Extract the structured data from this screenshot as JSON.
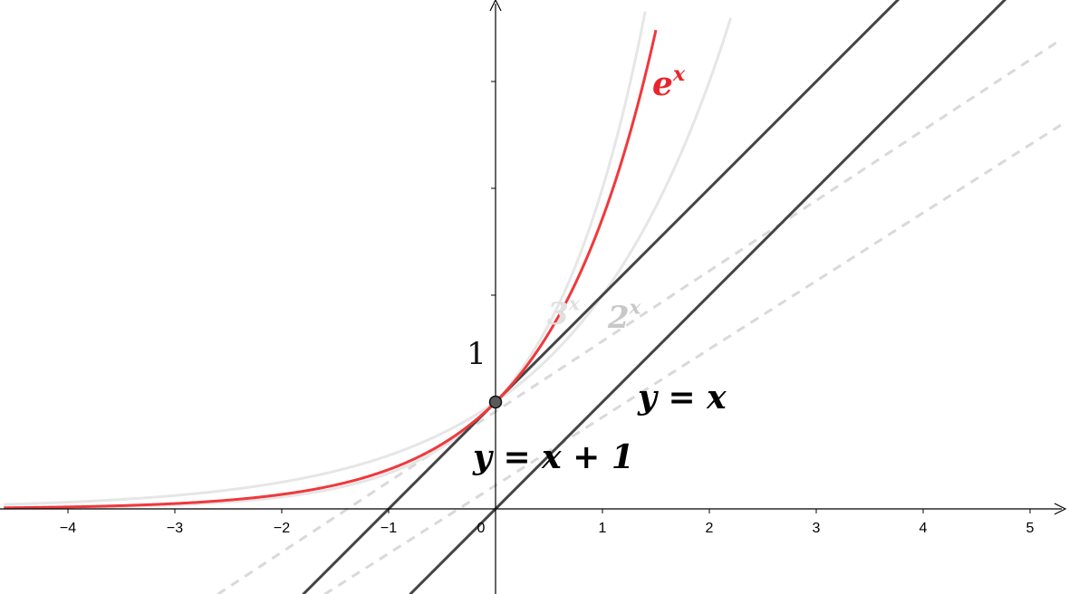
{
  "chart_data": {
    "type": "line",
    "title": "",
    "xlabel": "",
    "ylabel": "",
    "xlim": [
      -4.6,
      5.3
    ],
    "ylim": [
      -0.8,
      4.7
    ],
    "grid": false,
    "x_ticks": [
      "-4",
      "-3",
      "-2",
      "-1",
      "0",
      "1",
      "2",
      "3",
      "4",
      "5"
    ],
    "y_tick_label": "1",
    "series": [
      {
        "name": "e^x",
        "label_base": "e",
        "label_exp": "x",
        "color": "#f0383c",
        "style": "solid",
        "x": [
          -4.6,
          -4,
          -3,
          -2,
          -1,
          -0.5,
          0,
          0.5,
          1,
          1.5
        ],
        "y": [
          0.0101,
          0.0183,
          0.0498,
          0.1353,
          0.3679,
          0.6065,
          1,
          1.6487,
          2.7183,
          4.4817
        ]
      },
      {
        "name": "3^x",
        "label_base": "3",
        "label_exp": "x",
        "color": "#e6e6e6",
        "style": "solid",
        "x": [
          -4.6,
          -3,
          -2,
          -1,
          0,
          0.5,
          1,
          1.4
        ],
        "y": [
          0.0064,
          0.037,
          0.1111,
          0.3333,
          1,
          1.7321,
          3,
          4.6555
        ]
      },
      {
        "name": "2^x",
        "label_base": "2",
        "label_exp": "x",
        "color": "#e6e6e6",
        "style": "solid",
        "x": [
          -4.6,
          -3,
          -2,
          -1,
          0,
          1,
          2,
          2.2
        ],
        "y": [
          0.0412,
          0.125,
          0.25,
          0.5,
          1,
          2,
          4,
          4.5948
        ]
      },
      {
        "name": "y = x + 1",
        "color": "#444444",
        "style": "solid",
        "x": [
          -1.8,
          3.8
        ],
        "y": [
          -0.8,
          4.8
        ]
      },
      {
        "name": "y = x",
        "color": "#444444",
        "style": "solid",
        "x": [
          -0.8,
          4.8
        ],
        "y": [
          -0.8,
          4.8
        ]
      },
      {
        "name": "",
        "color": "#d9d9d9",
        "style": "dashed",
        "x": [
          -2.6,
          5.3
        ],
        "y": [
          -0.8,
          4.4
        ]
      },
      {
        "name": "",
        "color": "#d9d9d9",
        "style": "dashed",
        "x": [
          -1.6,
          5.3
        ],
        "y": [
          -0.8,
          3.6
        ]
      }
    ],
    "point": {
      "x": 0,
      "y": 1
    },
    "labels": {
      "yx1": "y = x + 1",
      "yx": "y = x"
    }
  }
}
